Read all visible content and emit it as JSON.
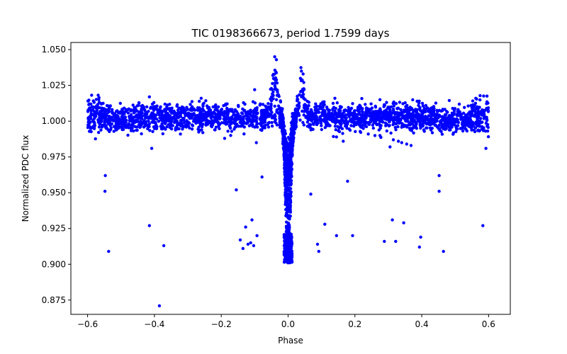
{
  "chart_data": {
    "type": "scatter",
    "title": "TIC 0198366673, period 1.7599 days",
    "xlabel": "Phase",
    "ylabel": "Normalized PDC flux",
    "xlim": [
      -0.65,
      0.665
    ],
    "ylim": [
      0.865,
      1.055
    ],
    "xticks": [
      -0.6,
      -0.4,
      -0.2,
      0.0,
      0.2,
      0.4,
      0.6
    ],
    "xtick_labels": [
      "−0.6",
      "−0.4",
      "−0.2",
      "0.0",
      "0.2",
      "0.4",
      "0.6"
    ],
    "yticks": [
      0.875,
      0.9,
      0.925,
      0.95,
      0.975,
      1.0,
      1.025,
      1.05
    ],
    "ytick_labels": [
      "0.875",
      "0.900",
      "0.925",
      "0.950",
      "0.975",
      "1.000",
      "1.025",
      "1.050"
    ],
    "grid": false,
    "legend": "none",
    "marker_color": "#0000ff",
    "marker_radius": 2.2,
    "series": [
      {
        "values_note": "dense band of points around flux 1.0 across phase -0.6 to 0.6; primary transit dip near phase 0; outliers as listed",
        "outliers": [
          [
            -0.547,
            0.962
          ],
          [
            -0.548,
            0.951
          ],
          [
            -0.537,
            0.909
          ],
          [
            -0.415,
            0.927
          ],
          [
            -0.408,
            0.981
          ],
          [
            -0.385,
            0.871
          ],
          [
            -0.372,
            0.913
          ],
          [
            -0.155,
            0.952
          ],
          [
            -0.143,
            0.917
          ],
          [
            -0.135,
            0.911
          ],
          [
            -0.127,
            0.926
          ],
          [
            -0.12,
            0.914
          ],
          [
            -0.112,
            0.915
          ],
          [
            -0.108,
            0.931
          ],
          [
            -0.103,
            0.913
          ],
          [
            -0.093,
            0.92
          ],
          [
            -0.078,
            0.961
          ],
          [
            0.068,
            0.949
          ],
          [
            0.088,
            0.914
          ],
          [
            0.092,
            0.909
          ],
          [
            0.11,
            0.928
          ],
          [
            0.145,
            0.92
          ],
          [
            0.178,
            0.958
          ],
          [
            0.193,
            0.92
          ],
          [
            0.288,
            0.916
          ],
          [
            0.312,
            0.931
          ],
          [
            0.322,
            0.916
          ],
          [
            0.346,
            0.929
          ],
          [
            0.393,
            0.912
          ],
          [
            0.397,
            0.919
          ],
          [
            0.452,
            0.962
          ],
          [
            0.452,
            0.951
          ],
          [
            0.465,
            0.909
          ],
          [
            0.583,
            0.927
          ],
          [
            0.592,
            0.981
          ],
          [
            0.305,
            0.982
          ],
          [
            0.315,
            0.987
          ],
          [
            0.33,
            0.986
          ],
          [
            0.34,
            0.985
          ],
          [
            0.355,
            0.984
          ],
          [
            0.368,
            0.983
          ],
          [
            -0.322,
            0.991
          ],
          [
            -0.255,
            0.992
          ],
          [
            -0.19,
            0.988
          ],
          [
            -0.18,
            0.993
          ],
          [
            -0.095,
            0.985
          ],
          [
            0.165,
            0.986
          ],
          [
            0.145,
            0.989
          ],
          [
            0.24,
            0.991
          ],
          [
            0.26,
            0.99
          ],
          [
            0.275,
            0.99
          ],
          [
            -0.415,
            1.017
          ],
          [
            -0.26,
            1.016
          ],
          [
            -0.1,
            1.022
          ],
          [
            0.14,
            1.016
          ],
          [
            0.275,
            1.015
          ],
          [
            -0.04,
            1.045
          ],
          [
            -0.035,
            1.043
          ],
          [
            0.04,
            1.035
          ],
          [
            0.045,
            1.033
          ]
        ]
      }
    ]
  }
}
